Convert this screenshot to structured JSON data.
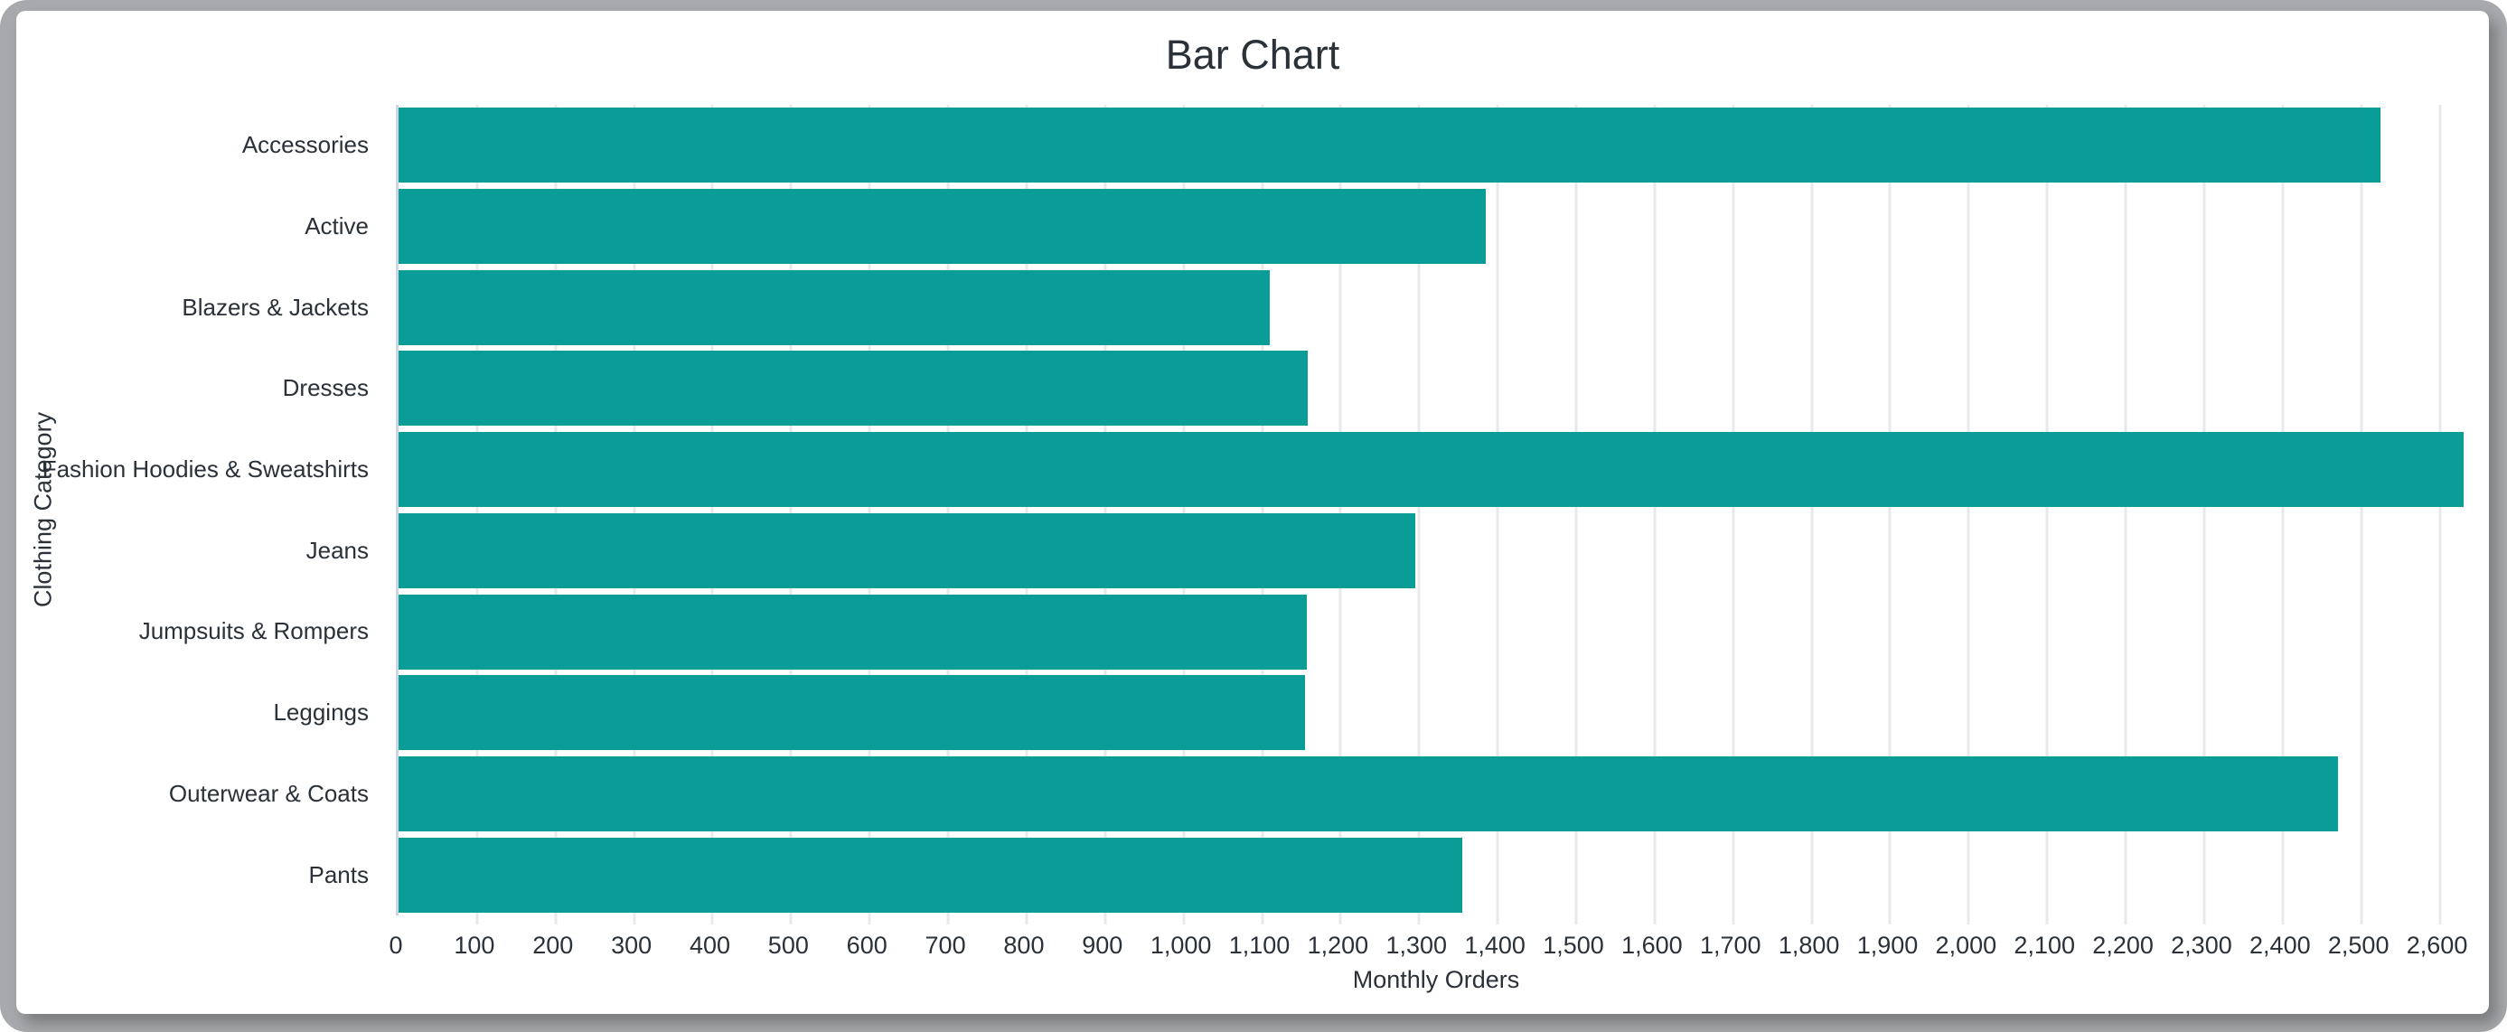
{
  "chart_data": {
    "type": "bar",
    "orientation": "horizontal",
    "title": "Bar Chart",
    "xlabel": "Monthly Orders",
    "ylabel": "Clothing Category",
    "categories": [
      "Accessories",
      "Active",
      "Blazers & Jackets",
      "Dresses",
      "Fashion Hoodies & Sweatshirts",
      "Jeans",
      "Jumpsuits & Rompers",
      "Leggings",
      "Outerwear & Coats",
      "Pants"
    ],
    "values": [
      2525,
      1385,
      1110,
      1158,
      2630,
      1295,
      1157,
      1155,
      2470,
      1355
    ],
    "xlim": [
      0,
      2650
    ],
    "xtick_step": 100,
    "xtick_labels": [
      "0",
      "100",
      "200",
      "300",
      "400",
      "500",
      "600",
      "700",
      "800",
      "900",
      "1,000",
      "1,100",
      "1,200",
      "1,300",
      "1,400",
      "1,500",
      "1,600",
      "1,700",
      "1,800",
      "1,900",
      "2,000",
      "2,100",
      "2,200",
      "2,300",
      "2,400",
      "2,500",
      "2,600"
    ],
    "grid": true,
    "legend_position": "none",
    "bar_height_fraction": 0.92,
    "colors": {
      "bar": "#0a9c96",
      "text": "#2b3139",
      "gridline": "#e8e9ea",
      "axis_line": "#cdd5e2",
      "frame": "#a7a9ac",
      "background": "#ffffff"
    }
  }
}
